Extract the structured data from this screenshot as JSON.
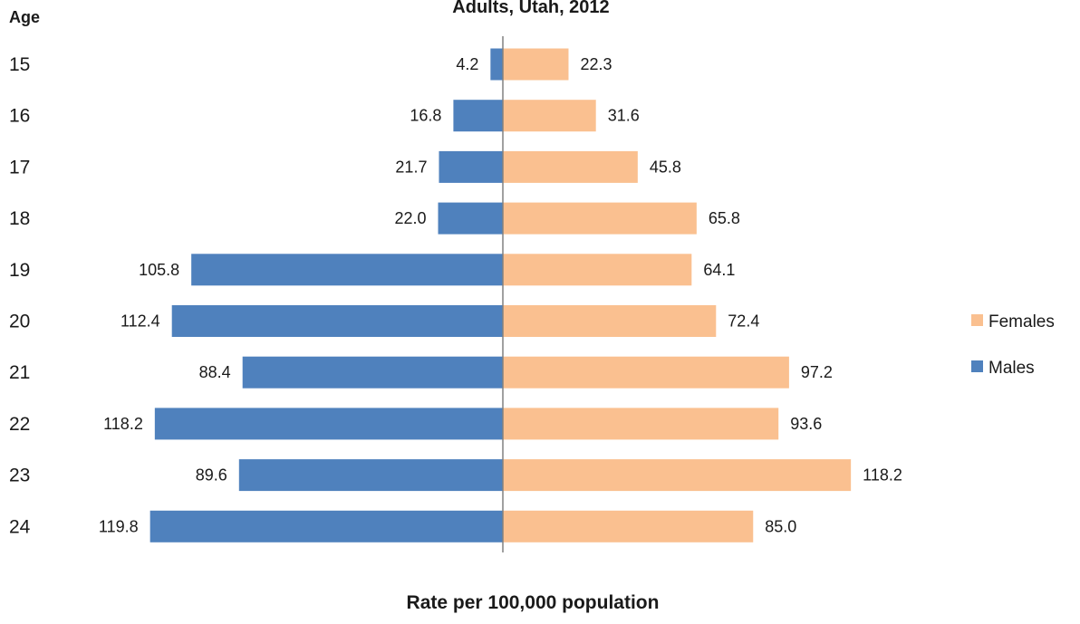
{
  "chart_data": {
    "type": "bar",
    "orientation": "horizontal",
    "layout": "population-pyramid",
    "title": "Adults, Utah, 2012",
    "category_axis_title": "Age",
    "value_axis_title": "Rate per 100,000 population",
    "categories": [
      "15",
      "16",
      "17",
      "18",
      "19",
      "20",
      "21",
      "22",
      "23",
      "24"
    ],
    "series": [
      {
        "name": "Males",
        "side": "left",
        "color": "#4f81bd",
        "values": [
          4.2,
          16.8,
          21.7,
          22.0,
          105.8,
          112.4,
          88.4,
          118.2,
          89.6,
          119.8
        ],
        "labels": [
          "4.2",
          "16.8",
          "21.7",
          "22.0",
          "105.8",
          "112.4",
          "88.4",
          "118.2",
          "89.6",
          "119.8"
        ]
      },
      {
        "name": "Females",
        "side": "right",
        "color": "#fac090",
        "values": [
          22.3,
          31.6,
          45.8,
          65.8,
          64.1,
          72.4,
          97.2,
          93.6,
          118.2,
          85.0
        ],
        "labels": [
          "22.3",
          "31.6",
          "45.8",
          "65.8",
          "64.1",
          "72.4",
          "97.2",
          "93.6",
          "118.2",
          "85.0"
        ]
      }
    ],
    "xlim": [
      -125,
      125
    ],
    "grid": false,
    "legend": {
      "placement": "right",
      "order": [
        "Females",
        "Males"
      ]
    },
    "axis_color": "#808080"
  }
}
